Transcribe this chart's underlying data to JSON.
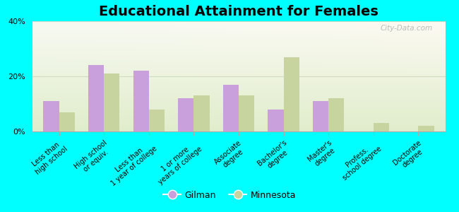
{
  "title": "Educational Attainment for Females",
  "categories": [
    "Less than\nhigh school",
    "High school\nor equiv.",
    "Less than\n1 year of college",
    "1 or more\nyears of college",
    "Associate\ndegree",
    "Bachelor's\ndegree",
    "Master's\ndegree",
    "Profess.\nschool degree",
    "Doctorate\ndegree"
  ],
  "gilman_values": [
    11,
    24,
    22,
    12,
    17,
    8,
    11,
    0,
    0
  ],
  "minnesota_values": [
    7,
    21,
    8,
    13,
    13,
    27,
    12,
    3,
    2
  ],
  "gilman_color": "#c9a0dc",
  "minnesota_color": "#c8d4a0",
  "background_fig": "#00ffff",
  "ylim": [
    0,
    40
  ],
  "yticks": [
    0,
    20,
    40
  ],
  "ytick_labels": [
    "0%",
    "20%",
    "40%"
  ],
  "watermark": "City-Data.com",
  "legend_gilman": "Gilman",
  "legend_minnesota": "Minnesota",
  "title_fontsize": 14,
  "bar_width": 0.35,
  "tick_fontsize": 7.0,
  "legend_fontsize": 9,
  "grid_color": "#d0dcc0"
}
